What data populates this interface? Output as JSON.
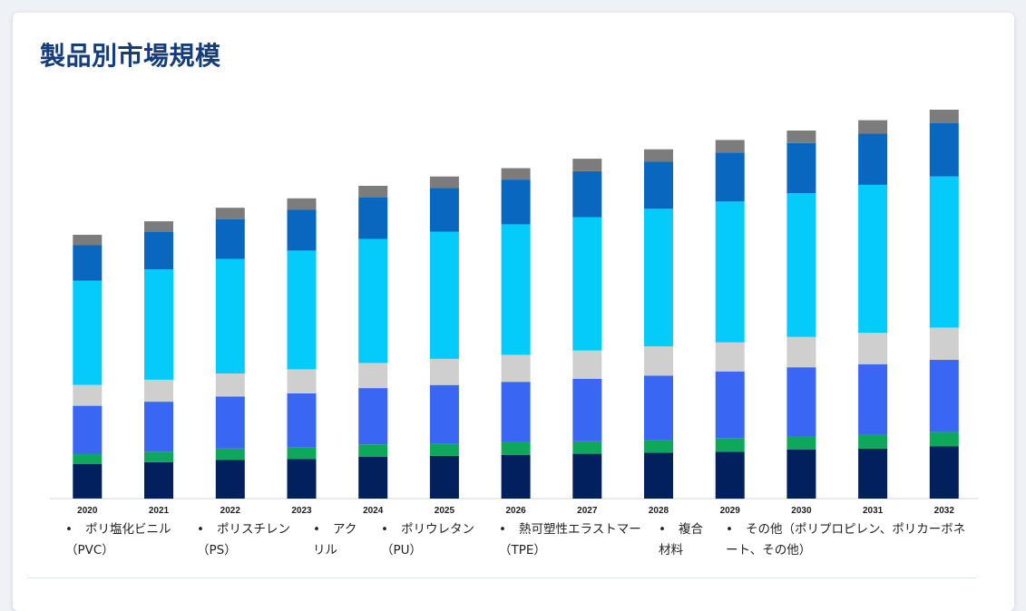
{
  "title": "製品別市場規模",
  "legend_bullet": "•",
  "chart_data": {
    "type": "bar",
    "stacked": true,
    "title": "",
    "xlabel": "",
    "ylabel": "",
    "categories": [
      "2020",
      "2021",
      "2022",
      "2023",
      "2024",
      "2025",
      "2026",
      "2027",
      "2028",
      "2029",
      "2030",
      "2031",
      "2032"
    ],
    "series": [
      {
        "name": "ポリ塩化ビニル（PVC）",
        "color": "#02205e",
        "values": [
          3.3,
          3.5,
          3.7,
          3.8,
          4.0,
          4.1,
          4.2,
          4.3,
          4.4,
          4.5,
          4.7,
          4.8,
          5.0
        ]
      },
      {
        "name": "ポリスチレン（PS）",
        "color": "#0fa85a",
        "values": [
          1.0,
          1.0,
          1.1,
          1.1,
          1.2,
          1.2,
          1.2,
          1.2,
          1.2,
          1.3,
          1.3,
          1.3,
          1.4
        ]
      },
      {
        "name": "アクリル",
        "color": "#3a66f4",
        "values": [
          4.6,
          4.8,
          5.0,
          5.2,
          5.4,
          5.6,
          5.8,
          6.0,
          6.2,
          6.4,
          6.6,
          6.8,
          6.9
        ]
      },
      {
        "name": "ポリウレタン（PU）",
        "color": "#cfcfcf",
        "values": [
          2.0,
          2.1,
          2.2,
          2.3,
          2.4,
          2.5,
          2.6,
          2.7,
          2.8,
          2.8,
          2.9,
          3.0,
          3.1
        ]
      },
      {
        "name": "熱可塑性エラストマー（TPE）",
        "color": "#05cbfa",
        "values": [
          10.0,
          10.6,
          11.0,
          11.4,
          11.9,
          12.2,
          12.5,
          12.8,
          13.2,
          13.5,
          13.8,
          14.2,
          14.5
        ]
      },
      {
        "name": "複合材料",
        "color": "#0a67bf",
        "values": [
          3.4,
          3.6,
          3.8,
          3.9,
          4.0,
          4.2,
          4.3,
          4.4,
          4.5,
          4.7,
          4.8,
          4.9,
          5.1
        ]
      },
      {
        "name": "その他（ポリプロピレン、ポリカーボネート、その他）",
        "color": "#7c7c7c",
        "values": [
          1.0,
          1.0,
          1.1,
          1.1,
          1.1,
          1.1,
          1.1,
          1.2,
          1.2,
          1.2,
          1.2,
          1.3,
          1.3
        ]
      }
    ],
    "ylim": [
      0,
      40
    ],
    "legend_position": "bottom",
    "grid": false
  }
}
